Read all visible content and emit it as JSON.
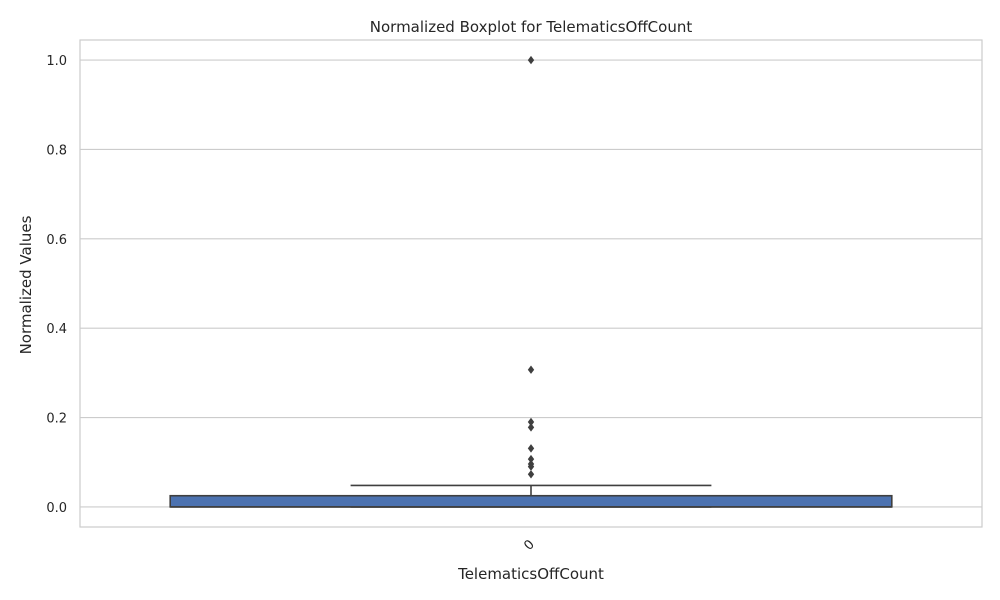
{
  "chart_data": {
    "type": "boxplot",
    "title": "Normalized Boxplot for TelematicsOffCount",
    "xlabel": "TelematicsOffCount",
    "ylabel": "Normalized Values",
    "categories": [
      "0"
    ],
    "ylim": [
      -0.045,
      1.045
    ],
    "yticks": [
      0.0,
      0.2,
      0.4,
      0.6,
      0.8,
      1.0
    ],
    "ytick_labels": [
      "0.0",
      "0.2",
      "0.4",
      "0.6",
      "0.8",
      "1.0"
    ],
    "grid": true,
    "box": {
      "q1": 0.0,
      "median": 0.0,
      "q3": 0.025,
      "whisker_low": 0.0,
      "whisker_high": 0.048
    },
    "outliers": [
      1.0,
      0.307,
      0.19,
      0.178,
      0.131,
      0.107,
      0.096,
      0.09,
      0.073
    ],
    "colors": {
      "box_fill": "#4c72b0",
      "line": "#3f3f3f",
      "grid": "#cccccc",
      "frame": "#cccccc"
    }
  }
}
